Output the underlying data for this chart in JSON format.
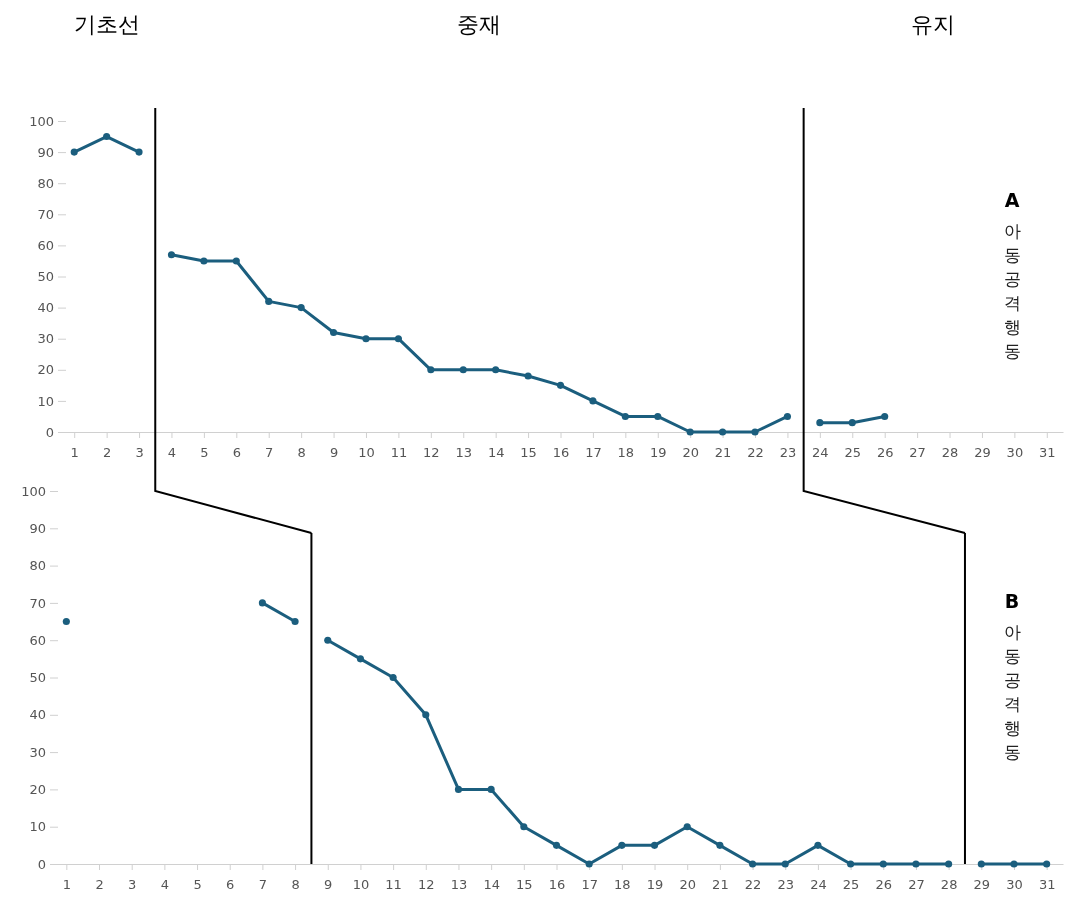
{
  "chart_data": [
    {
      "type": "line",
      "title": "A",
      "ylabel": "아동공격행동",
      "annotations": [
        "기초선",
        "중재",
        "유지"
      ],
      "marker": "circle",
      "xlim": [
        0.5,
        31.5
      ],
      "xticks": [
        1,
        2,
        3,
        4,
        5,
        6,
        7,
        8,
        9,
        10,
        11,
        12,
        13,
        14,
        15,
        16,
        17,
        18,
        19,
        20,
        21,
        22,
        23,
        24,
        25,
        26,
        27,
        28,
        29,
        30,
        31
      ],
      "ylim": [
        0,
        100
      ],
      "yticks": [
        0,
        10,
        20,
        30,
        40,
        50,
        60,
        70,
        80,
        90,
        100
      ],
      "ref_lines": [
        {
          "axis": "x",
          "value": 3.5,
          "color": "#000000"
        },
        {
          "axis": "x",
          "value": 23.5,
          "color": "#000000"
        }
      ],
      "series": [
        {
          "color": "#1b5e7e",
          "x": [
            1,
            2,
            3
          ],
          "values": [
            90,
            95,
            90
          ]
        },
        {
          "color": "#1b5e7e",
          "x": [
            4,
            5,
            6,
            7,
            8,
            9,
            10,
            11,
            12,
            13,
            14,
            15,
            16,
            17,
            18,
            19,
            20,
            21,
            22,
            23
          ],
          "values": [
            57,
            55,
            55,
            42,
            40,
            32,
            30,
            30,
            20,
            20,
            20,
            18,
            15,
            10,
            5,
            5,
            0,
            0,
            0,
            5
          ]
        },
        {
          "color": "#1b5e7e",
          "x": [
            24,
            25,
            26
          ],
          "values": [
            3,
            3,
            5
          ]
        }
      ]
    },
    {
      "type": "line",
      "title": "B",
      "ylabel": "아동공격행동",
      "marker": "circle",
      "xlim": [
        0.5,
        31.5
      ],
      "xticks": [
        1,
        2,
        3,
        4,
        5,
        6,
        7,
        8,
        9,
        10,
        11,
        12,
        13,
        14,
        15,
        16,
        17,
        18,
        19,
        20,
        21,
        22,
        23,
        24,
        25,
        26,
        27,
        28,
        29,
        30,
        31
      ],
      "ylim": [
        0,
        100
      ],
      "yticks": [
        0,
        10,
        20,
        30,
        40,
        50,
        60,
        70,
        80,
        90,
        100
      ],
      "ref_lines": [
        {
          "axis": "x",
          "value": 8.5,
          "color": "#000000"
        },
        {
          "axis": "x",
          "value": 28.5,
          "color": "#000000"
        }
      ],
      "series": [
        {
          "color": "#1b5e7e",
          "x": [
            1
          ],
          "values": [
            65
          ]
        },
        {
          "color": "#1b5e7e",
          "x": [
            7,
            8
          ],
          "values": [
            70,
            65
          ]
        },
        {
          "color": "#1b5e7e",
          "x": [
            9,
            10,
            11,
            12,
            13,
            14,
            15,
            16,
            17,
            18,
            19,
            20,
            21,
            22,
            23,
            24,
            25,
            26,
            27,
            28
          ],
          "values": [
            60,
            55,
            50,
            40,
            20,
            20,
            10,
            5,
            0,
            5,
            5,
            10,
            5,
            0,
            0,
            5,
            0,
            0,
            0,
            0
          ]
        },
        {
          "color": "#1b5e7e",
          "x": [
            29,
            30,
            31
          ],
          "values": [
            0,
            0,
            0
          ]
        }
      ]
    }
  ]
}
